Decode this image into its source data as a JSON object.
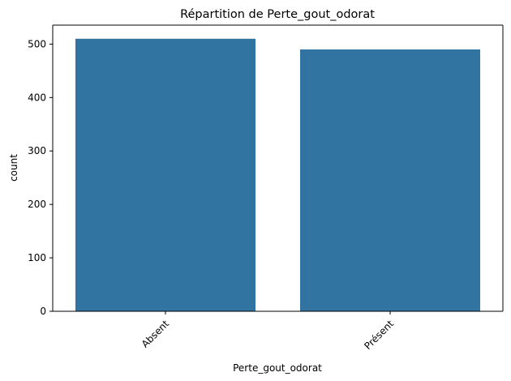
{
  "chart_data": {
    "type": "bar",
    "title": "Répartition de Perte_gout_odorat",
    "xlabel": "Perte_gout_odorat",
    "ylabel": "count",
    "categories": [
      "Absent",
      "Présent"
    ],
    "values": [
      510,
      490
    ],
    "ylim": [
      0,
      535.5
    ],
    "yticks": [
      0,
      100,
      200,
      300,
      400,
      500
    ],
    "xtick_rotation": 45,
    "bar_color": "#3274a1",
    "grid": false,
    "legend": "none"
  }
}
